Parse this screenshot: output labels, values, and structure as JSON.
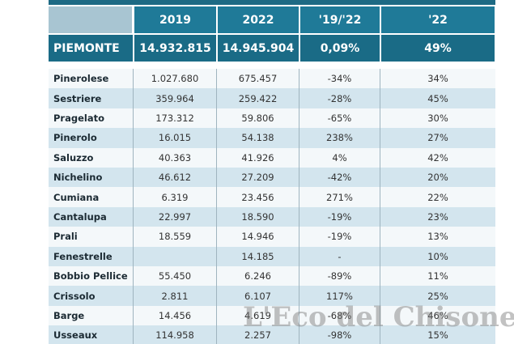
{
  "table": {
    "header": [
      "2019",
      "2022",
      "'19/'22",
      "'22"
    ],
    "total": [
      "PIEMONTE",
      "14.932.815",
      "14.945.904",
      "0,09%",
      "49%"
    ],
    "rows": [
      [
        "Pinerolese",
        "1.027.680",
        "675.457",
        "-34%",
        "34%"
      ],
      [
        "Sestriere",
        "359.964",
        "259.422",
        "-28%",
        "45%"
      ],
      [
        "Pragelato",
        "173.312",
        "59.806",
        "-65%",
        "30%"
      ],
      [
        "Pinerolo",
        "16.015",
        "54.138",
        "238%",
        "27%"
      ],
      [
        "Saluzzo",
        "40.363",
        "41.926",
        "4%",
        "42%"
      ],
      [
        "Nichelino",
        "46.612",
        "27.209",
        "-42%",
        "20%"
      ],
      [
        "Cumiana",
        "6.319",
        "23.456",
        "271%",
        "22%"
      ],
      [
        "Cantalupa",
        "22.997",
        "18.590",
        "-19%",
        "23%"
      ],
      [
        "Prali",
        "18.559",
        "14.946",
        "-19%",
        "13%"
      ],
      [
        "Fenestrelle",
        null,
        "14.185",
        "-",
        "10%"
      ],
      [
        "Bobbio Pellice",
        "55.450",
        "6.246",
        "-89%",
        "11%"
      ],
      [
        "Crissolo",
        "2.811",
        "6.107",
        "117%",
        "25%"
      ],
      [
        "Barge",
        "14.456",
        "4.619",
        "-68%",
        "46%"
      ],
      [
        "Usseaux",
        "114.958",
        "2.257",
        "-98%",
        "15%"
      ]
    ]
  },
  "watermark": "L'Eco del Chisone.it"
}
